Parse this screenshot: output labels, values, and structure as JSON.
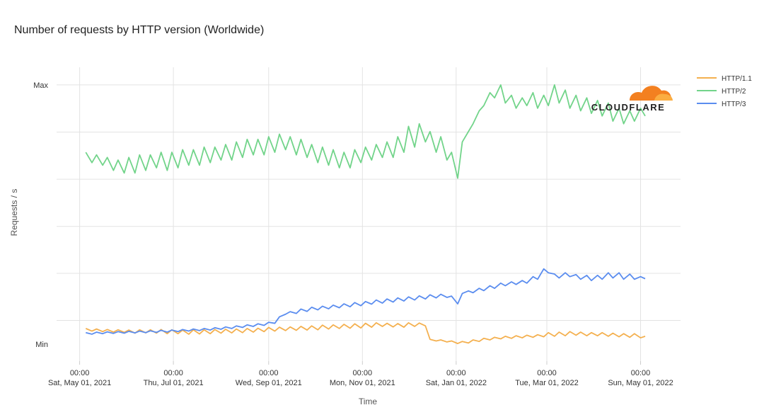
{
  "chart_data": {
    "type": "line",
    "title": "Number of requests by HTTP version (Worldwide)",
    "x_label": "Time",
    "y_label": "Requests / s",
    "logo": "CLOUDFLARE",
    "xlim": [
      "2021-04-16",
      "2022-05-27"
    ],
    "xticks": [
      {
        "value": "2021-05-01",
        "label": [
          "00:00",
          "Sat, May 01, 2021"
        ]
      },
      {
        "value": "2021-07-01",
        "label": [
          "00:00",
          "Thu, Jul 01, 2021"
        ]
      },
      {
        "value": "2021-09-01",
        "label": [
          "00:00",
          "Wed, Sep 01, 2021"
        ]
      },
      {
        "value": "2021-11-01",
        "label": [
          "00:00",
          "Mon, Nov 01, 2021"
        ]
      },
      {
        "value": "2022-01-01",
        "label": [
          "00:00",
          "Sat, Jan 01, 2022"
        ]
      },
      {
        "value": "2022-03-01",
        "label": [
          "00:00",
          "Tue, Mar 01, 2022"
        ]
      },
      {
        "value": "2022-05-01",
        "label": [
          "00:00",
          "Sun, May 01, 2022"
        ]
      }
    ],
    "ylim": [
      -6.6,
      106.8
    ],
    "yticks": [
      {
        "value": 0,
        "label": "Min"
      },
      {
        "value": 100,
        "label": "Max"
      }
    ],
    "ygrid": [
      9.1,
      27.3,
      45.4,
      63.6,
      81.8,
      100
    ],
    "grid": true,
    "legend": "top-right",
    "x": [
      "2021-05-05",
      "2021-05-09",
      "2021-05-12",
      "2021-05-16",
      "2021-05-19",
      "2021-05-23",
      "2021-05-26",
      "2021-05-30",
      "2021-06-02",
      "2021-06-06",
      "2021-06-09",
      "2021-06-13",
      "2021-06-16",
      "2021-06-20",
      "2021-06-23",
      "2021-06-27",
      "2021-06-30",
      "2021-07-04",
      "2021-07-07",
      "2021-07-11",
      "2021-07-14",
      "2021-07-18",
      "2021-07-21",
      "2021-07-25",
      "2021-07-28",
      "2021-08-01",
      "2021-08-04",
      "2021-08-08",
      "2021-08-11",
      "2021-08-15",
      "2021-08-18",
      "2021-08-22",
      "2021-08-25",
      "2021-08-29",
      "2021-09-01",
      "2021-09-05",
      "2021-09-08",
      "2021-09-12",
      "2021-09-15",
      "2021-09-19",
      "2021-09-22",
      "2021-09-26",
      "2021-09-29",
      "2021-10-03",
      "2021-10-06",
      "2021-10-10",
      "2021-10-13",
      "2021-10-17",
      "2021-10-20",
      "2021-10-24",
      "2021-10-27",
      "2021-10-31",
      "2021-11-03",
      "2021-11-07",
      "2021-11-10",
      "2021-11-14",
      "2021-11-17",
      "2021-11-21",
      "2021-11-24",
      "2021-11-28",
      "2021-12-01",
      "2021-12-05",
      "2021-12-08",
      "2021-12-12",
      "2021-12-15",
      "2021-12-19",
      "2021-12-22",
      "2021-12-26",
      "2021-12-29",
      "2022-01-02",
      "2022-01-05",
      "2022-01-09",
      "2022-01-12",
      "2022-01-16",
      "2022-01-19",
      "2022-01-23",
      "2022-01-26",
      "2022-01-30",
      "2022-02-02",
      "2022-02-06",
      "2022-02-09",
      "2022-02-13",
      "2022-02-16",
      "2022-02-20",
      "2022-02-23",
      "2022-02-27",
      "2022-03-02",
      "2022-03-06",
      "2022-03-09",
      "2022-03-13",
      "2022-03-16",
      "2022-03-20",
      "2022-03-23",
      "2022-03-27",
      "2022-03-30",
      "2022-04-03",
      "2022-04-06",
      "2022-04-10",
      "2022-04-13",
      "2022-04-17",
      "2022-04-20",
      "2022-04-24",
      "2022-04-27",
      "2022-05-01",
      "2022-05-04"
    ],
    "series": [
      {
        "name": "HTTP/1.1",
        "color": "#f4b04f",
        "values": [
          6.0,
          5.0,
          5.8,
          4.8,
          5.6,
          4.6,
          5.5,
          4.5,
          5.4,
          4.2,
          5.5,
          4.3,
          5.5,
          4.2,
          5.6,
          4.0,
          5.5,
          4.0,
          5.4,
          3.8,
          5.5,
          3.9,
          5.5,
          4.0,
          5.6,
          4.2,
          5.7,
          4.3,
          5.8,
          4.4,
          6.0,
          4.6,
          6.1,
          4.8,
          6.4,
          5.0,
          6.5,
          5.2,
          6.6,
          5.3,
          6.8,
          5.4,
          7.0,
          5.5,
          7.3,
          5.8,
          7.4,
          6.0,
          7.6,
          6.1,
          7.8,
          6.2,
          8.0,
          6.5,
          8.2,
          6.8,
          8.0,
          6.6,
          7.9,
          6.5,
          8.2,
          6.8,
          8.1,
          7.0,
          1.8,
          1.2,
          1.6,
          0.8,
          1.2,
          0.2,
          1.0,
          0.4,
          1.6,
          1.0,
          2.2,
          1.6,
          2.6,
          2.0,
          3.0,
          2.2,
          3.2,
          2.4,
          3.4,
          2.6,
          3.6,
          2.8,
          4.4,
          3.0,
          4.6,
          3.2,
          4.8,
          3.4,
          4.6,
          3.2,
          4.4,
          3.2,
          4.4,
          3.0,
          4.2,
          2.8,
          4.0,
          2.6,
          4.0,
          2.4,
          3.0
        ]
      },
      {
        "name": "HTTP/2",
        "color": "#72d48a",
        "values": [
          74,
          70,
          73,
          69,
          72,
          67,
          71,
          66,
          72,
          66,
          73,
          67,
          73,
          68,
          74,
          67,
          74,
          68,
          75,
          69,
          75,
          69,
          76,
          70,
          76,
          71,
          77,
          71,
          78,
          72,
          79,
          73,
          79,
          73,
          80,
          74,
          81,
          75,
          80,
          73,
          79,
          72,
          77,
          70,
          76,
          69,
          75,
          68,
          74,
          68,
          75,
          70,
          76,
          71,
          77,
          72,
          78,
          72,
          80,
          74,
          84,
          76,
          85,
          78,
          82,
          74,
          80,
          71,
          74,
          64,
          78,
          82,
          85,
          90,
          92,
          97,
          95,
          100,
          93,
          96,
          91,
          95,
          92,
          97,
          91,
          96,
          92,
          100,
          93,
          98,
          91,
          96,
          90,
          95,
          89,
          94,
          88,
          93,
          86,
          91,
          85,
          90,
          86,
          91,
          88
        ]
      },
      {
        "name": "HTTP/3",
        "color": "#5b8def",
        "values": [
          4.4,
          3.8,
          4.6,
          4.0,
          4.7,
          4.1,
          4.8,
          4.2,
          4.9,
          4.3,
          5.0,
          4.4,
          5.1,
          4.5,
          5.3,
          4.6,
          5.4,
          4.8,
          5.6,
          5.0,
          5.8,
          5.2,
          6.0,
          5.4,
          6.3,
          5.7,
          6.6,
          6.0,
          7.0,
          6.4,
          7.4,
          6.8,
          7.8,
          7.2,
          8.4,
          8.0,
          10.5,
          11.5,
          12.5,
          11.8,
          13.5,
          12.6,
          14.2,
          13.2,
          14.6,
          13.6,
          15.0,
          14.0,
          15.5,
          14.4,
          16.0,
          14.8,
          16.4,
          15.4,
          17.0,
          15.8,
          17.4,
          16.2,
          17.8,
          16.6,
          18.2,
          17.0,
          18.6,
          17.4,
          19.0,
          17.8,
          19.2,
          18.0,
          18.5,
          15.5,
          19.5,
          20.5,
          19.8,
          21.5,
          20.6,
          22.5,
          21.5,
          23.5,
          22.5,
          24.0,
          23.0,
          24.5,
          23.5,
          26.0,
          25.0,
          29.0,
          27.5,
          27.0,
          25.5,
          27.5,
          26.0,
          26.8,
          25.0,
          26.5,
          24.5,
          26.5,
          25.0,
          27.5,
          25.5,
          27.5,
          25.0,
          27.0,
          25.0,
          26.0,
          25.2
        ]
      }
    ]
  }
}
